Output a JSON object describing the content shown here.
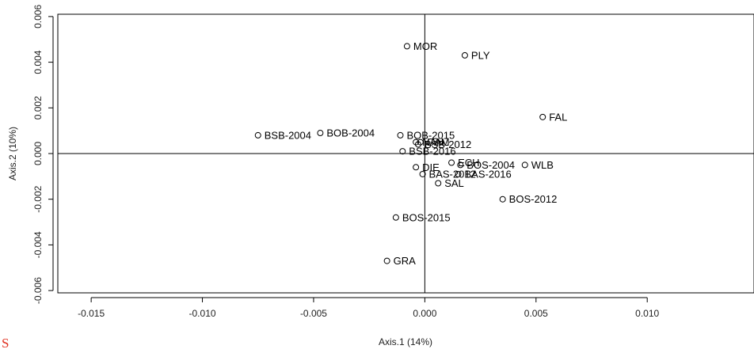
{
  "chart_data": {
    "type": "scatter",
    "title": "",
    "xlabel": "Axis.1 (14%)",
    "ylabel": "Axis.2 (10%)",
    "xlim": [
      -0.0165,
      0.0148
    ],
    "ylim": [
      -0.0061,
      0.0061
    ],
    "x_ticks": [
      -0.015,
      -0.01,
      -0.005,
      0.0,
      0.005,
      0.01
    ],
    "x_tick_labels": [
      "-0.015",
      "-0.010",
      "-0.005",
      "0.000",
      "0.005",
      "0.010"
    ],
    "y_ticks": [
      -0.006,
      -0.004,
      -0.002,
      0.0,
      0.002,
      0.004,
      0.006
    ],
    "y_tick_labels": [
      "-0.006",
      "-0.004",
      "-0.002",
      "0.000",
      "0.002",
      "0.004",
      "0.006"
    ],
    "reference_lines": {
      "x": 0,
      "y": 0
    },
    "grid": false,
    "point_color": "#000000",
    "points": [
      {
        "label": "MOR",
        "x": -0.0008,
        "y": 0.0047
      },
      {
        "label": "PLY",
        "x": 0.0018,
        "y": 0.0043
      },
      {
        "label": "FAL",
        "x": 0.0053,
        "y": 0.0016
      },
      {
        "label": "BSB-2004",
        "x": -0.0075,
        "y": 0.0008
      },
      {
        "label": "BOB-2004",
        "x": -0.0047,
        "y": 0.0009
      },
      {
        "label": "BOB-2015",
        "x": -0.0011,
        "y": 0.0008
      },
      {
        "label": "NAN",
        "x": -0.0004,
        "y": 0.0005
      },
      {
        "label": "CAM",
        "x": -0.0002,
        "y": 0.0005
      },
      {
        "label": "BSB-2012",
        "x": -0.0003,
        "y": 0.0004
      },
      {
        "label": "BSB-2016",
        "x": -0.001,
        "y": 0.0001
      },
      {
        "label": "ECH",
        "x": 0.0012,
        "y": -0.0004
      },
      {
        "label": "BOS-2004",
        "x": 0.0016,
        "y": -0.0005
      },
      {
        "label": "WLB",
        "x": 0.0045,
        "y": -0.0005
      },
      {
        "label": "DIE",
        "x": -0.0004,
        "y": -0.0006
      },
      {
        "label": "BAS-2012",
        "x": -0.0001,
        "y": -0.0009
      },
      {
        "label": "BAS-2016",
        "x": 0.0015,
        "y": -0.0009
      },
      {
        "label": "SAL",
        "x": 0.0006,
        "y": -0.0013
      },
      {
        "label": "BOS-2012",
        "x": 0.0035,
        "y": -0.002
      },
      {
        "label": "BOS-2015",
        "x": -0.0013,
        "y": -0.0028
      },
      {
        "label": "GRA",
        "x": -0.0017,
        "y": -0.0047
      }
    ]
  },
  "corner_mark": "S"
}
